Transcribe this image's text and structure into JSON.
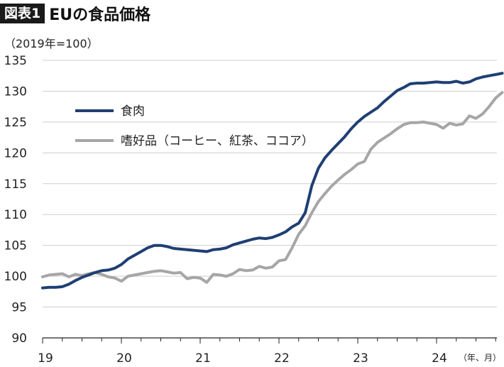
{
  "header": {
    "badge": "図表1",
    "title": "EUの食品価格",
    "unit_note": "（2019年=100）"
  },
  "chart_data": {
    "type": "line",
    "title": "EUの食品価格",
    "ylabel": "（2019年=100）",
    "xlabel": "",
    "x_unit_label": "（年、月）",
    "ylim": [
      90,
      135
    ],
    "y_ticks": [
      90,
      95,
      100,
      105,
      110,
      115,
      120,
      125,
      130,
      135
    ],
    "x_ticks": [
      {
        "label": "19",
        "month_index": 0
      },
      {
        "label": "20",
        "month_index": 12
      },
      {
        "label": "21",
        "month_index": 24
      },
      {
        "label": "22",
        "month_index": 36
      },
      {
        "label": "23",
        "month_index": 48
      },
      {
        "label": "24",
        "month_index": 60
      }
    ],
    "grid": true,
    "legend_position": "top-left",
    "series": [
      {
        "name": "食肉",
        "color": "#1f3f73",
        "values": [
          98.1,
          98.2,
          98.2,
          98.3,
          98.7,
          99.3,
          99.8,
          100.2,
          100.6,
          100.9,
          101.0,
          101.3,
          101.9,
          102.8,
          103.4,
          104.0,
          104.6,
          105.0,
          105.0,
          104.8,
          104.5,
          104.4,
          104.3,
          104.2,
          104.1,
          104.0,
          104.3,
          104.4,
          104.6,
          105.1,
          105.4,
          105.7,
          106.0,
          106.2,
          106.1,
          106.3,
          106.7,
          107.2,
          108.0,
          108.6,
          110.3,
          114.7,
          117.5,
          119.2,
          120.4,
          121.5,
          122.6,
          123.9,
          125.0,
          125.9,
          126.6,
          127.3,
          128.3,
          129.2,
          130.1,
          130.6,
          131.2,
          131.3,
          131.3,
          131.4,
          131.5,
          131.4,
          131.4,
          131.6,
          131.3,
          131.5,
          132.0,
          132.3,
          132.5,
          132.7,
          132.9
        ]
      },
      {
        "name": "嗜好品（コーヒー、紅茶、ココア）",
        "color": "#a6a6a6",
        "values": [
          99.9,
          100.2,
          100.3,
          100.4,
          99.9,
          100.3,
          100.1,
          100.4,
          100.6,
          100.3,
          99.9,
          99.7,
          99.2,
          100.0,
          100.2,
          100.4,
          100.6,
          100.8,
          100.9,
          100.7,
          100.5,
          100.6,
          99.6,
          99.8,
          99.7,
          99.0,
          100.3,
          100.2,
          100.0,
          100.4,
          101.1,
          100.9,
          101.0,
          101.6,
          101.3,
          101.5,
          102.5,
          102.7,
          104.6,
          106.8,
          108.2,
          110.3,
          112.1,
          113.4,
          114.6,
          115.6,
          116.5,
          117.3,
          118.2,
          118.6,
          120.6,
          121.7,
          122.4,
          123.1,
          123.9,
          124.6,
          124.9,
          124.9,
          125.0,
          124.8,
          124.6,
          124.0,
          124.8,
          124.5,
          124.7,
          126.0,
          125.6,
          126.3,
          127.5,
          128.9,
          129.8
        ]
      }
    ]
  }
}
